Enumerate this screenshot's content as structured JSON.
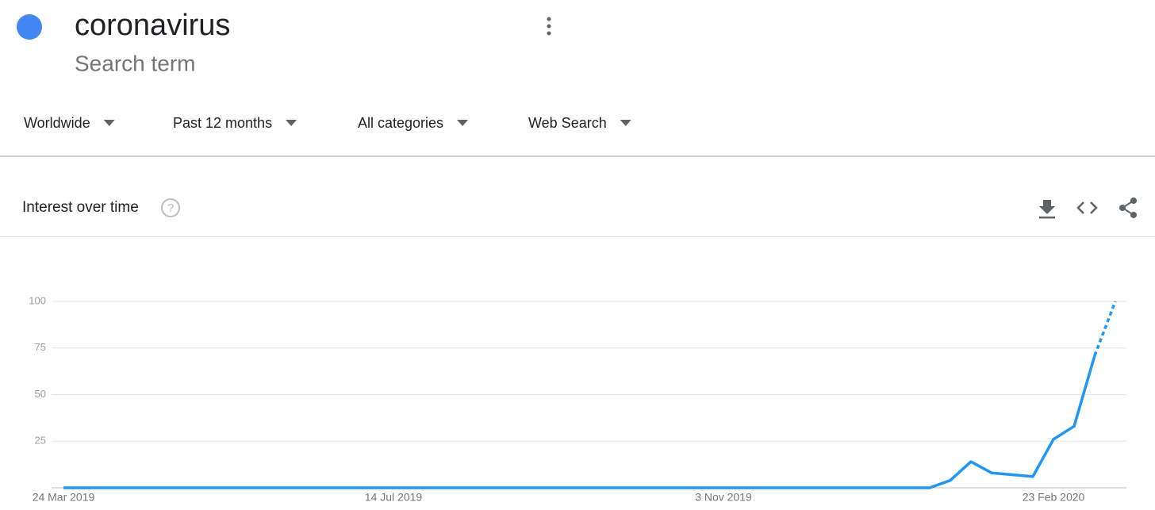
{
  "header": {
    "term": "coronavirus",
    "subtitle": "Search term",
    "color": "#4285f4"
  },
  "filters": [
    "Worldwide",
    "Past 12 months",
    "All categories",
    "Web Search"
  ],
  "section": {
    "title": "Interest over time"
  },
  "chart_data": {
    "type": "line",
    "categories": [
      "24 Mar 2019",
      null,
      null,
      null,
      null,
      null,
      null,
      null,
      null,
      null,
      null,
      null,
      null,
      null,
      null,
      null,
      "14 Jul 2019",
      null,
      null,
      null,
      null,
      null,
      null,
      null,
      null,
      null,
      null,
      null,
      null,
      null,
      null,
      null,
      "3 Nov 2019",
      null,
      null,
      null,
      null,
      null,
      null,
      null,
      null,
      null,
      null,
      null,
      null,
      null,
      null,
      null,
      "23 Feb 2020",
      null,
      null,
      null
    ],
    "series": [
      {
        "name": "coronavirus",
        "color": "#2196f3",
        "values": [
          0,
          0,
          0,
          0,
          0,
          0,
          0,
          0,
          0,
          0,
          0,
          0,
          0,
          0,
          0,
          0,
          0,
          0,
          0,
          0,
          0,
          0,
          0,
          0,
          0,
          0,
          0,
          0,
          0,
          0,
          0,
          0,
          0,
          0,
          0,
          0,
          0,
          0,
          0,
          0,
          0,
          0,
          0,
          4,
          14,
          8,
          7,
          6,
          26,
          33,
          71,
          100
        ]
      }
    ],
    "partial_last_point": true,
    "ylim": [
      0,
      100
    ],
    "yticks": [
      25,
      50,
      75,
      100
    ],
    "grid": true
  }
}
